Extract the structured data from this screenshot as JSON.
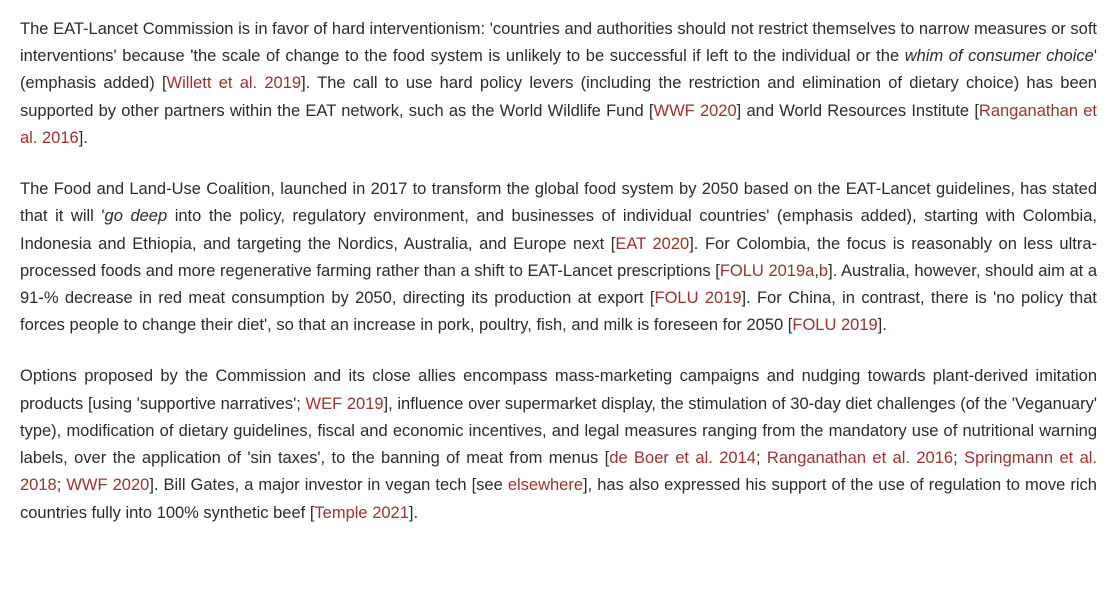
{
  "p1": {
    "s1a": "The EAT-Lancet Commission is in favor of hard interventionism: 'countries and authorities should not restrict themselves to narrow measures or soft interventions' because 'the scale of change to the food system is unlikely to be successful if left to the individual or the ",
    "s1_em": "whim of consumer choice",
    "s1b": "' (emphasis added) [",
    "cite1": "Willett et al. 2019",
    "s1c": "]. The call to use hard policy levers (including the restriction and elimination of dietary choice) has been supported by other partners within the EAT network, such as the World Wildlife Fund [",
    "cite2": "WWF 2020",
    "s1d": "] and World Resources Institute [",
    "cite3": "Ranganathan et al. 2016",
    "s1e": "]."
  },
  "p2": {
    "s1a": "The Food and Land-Use Coalition, launched in 2017 to transform the global food system by 2050 based on the EAT-Lancet guidelines, has stated that it will '",
    "s1_em": "go deep",
    "s1b": " into the policy, regulatory environment, and businesses of individual countries' (emphasis added), starting with Colombia, Indonesia and Ethiopia, and targeting the Nordics, Australia, and Europe next [",
    "cite1": "EAT 2020",
    "s1c": "]. For Colombia, the focus is reasonably on less ultra-processed foods and more regenerative farming rather than a shift to EAT-Lancet prescriptions [",
    "cite2": "FOLU 2019a",
    "s1d": ",",
    "cite3": "b",
    "s1e": "]. Australia, however, should aim at a 91-% decrease in red meat consumption by 2050, directing its production at export [",
    "cite4": "FOLU 2019",
    "s1f": "]. For China, in contrast, there is 'no policy that forces people to change their diet', so that an increase in pork, poultry, fish, and milk is foreseen for 2050 [",
    "cite5": "FOLU 2019",
    "s1g": "]."
  },
  "p3": {
    "s1a": "Options proposed by the Commission and its close allies encompass mass-marketing campaigns and nudging towards plant-derived imitation products [using 'supportive narratives'; ",
    "cite1": "WEF 2019",
    "s1b": "], influence over supermarket display, the stimulation of 30-day diet challenges (of the 'Veganuary' type), modification of dietary guidelines, fiscal and economic incentives, and legal measures ranging from the mandatory use of nutritional warning labels, over the application of 'sin taxes', to the banning of meat from menus [",
    "cite2": "de Boer et al. 2014",
    "sep1": "; ",
    "cite3": "Ranganathan et al. 2016",
    "sep2": "; ",
    "cite4": "Springmann et al. 2018",
    "sep3": "; ",
    "cite5": "WWF 2020",
    "s1c": "]. Bill Gates, a major investor in vegan tech [see ",
    "cite6": "elsewhere",
    "s1d": "], has also expressed his support of the use of regulation to move rich countries fully into 100% synthetic beef [",
    "cite7": "Temple 2021",
    "s1e": "]."
  }
}
